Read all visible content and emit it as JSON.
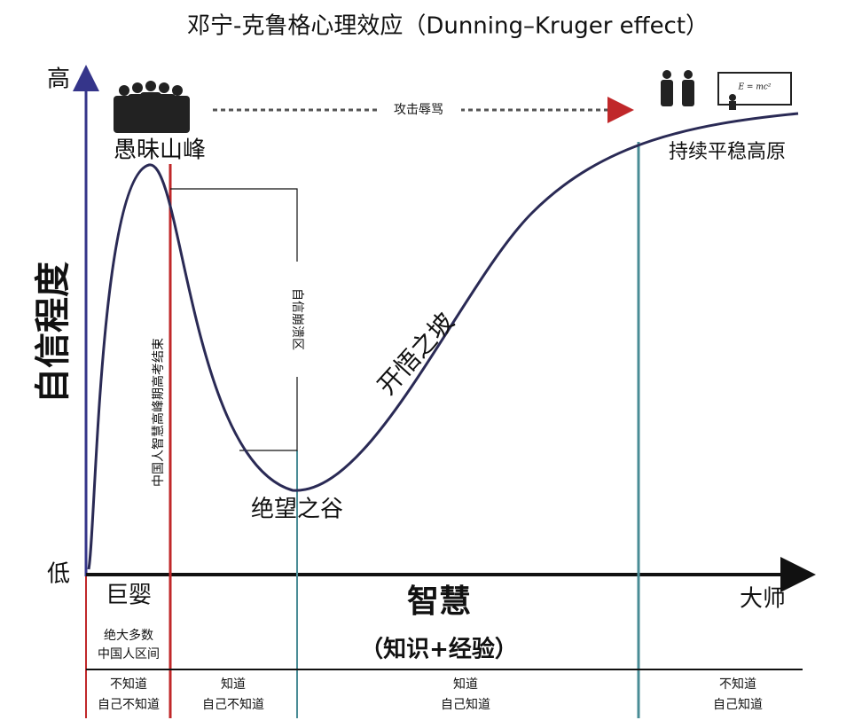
{
  "title": "邓宁-克鲁格心理效应（Dunning–Kruger effect）",
  "axes": {
    "y_label": "自信程度",
    "high": "高",
    "low": "低",
    "x_label": "智慧",
    "x_sublabel": "（知识+经验）",
    "left": "巨婴",
    "right": "大师"
  },
  "regions": {
    "peak": "愚昧山峰",
    "valley": "绝望之谷",
    "slope": "开悟之坡",
    "plateau": "持续平稳高原"
  },
  "annotations": {
    "attack": "攻击辱骂",
    "gaokao": "中国人智慧高峰期高考结束",
    "collapse": "自信崩溃区",
    "majority": [
      "绝大多数",
      "中国人区间"
    ],
    "equation": "E = mc²"
  },
  "stages": [
    [
      "不知道",
      "自己不知道"
    ],
    [
      "知道",
      "自己不知道"
    ],
    [
      "知道",
      "自己知道"
    ],
    [
      "不知道",
      "自己知道"
    ]
  ]
}
